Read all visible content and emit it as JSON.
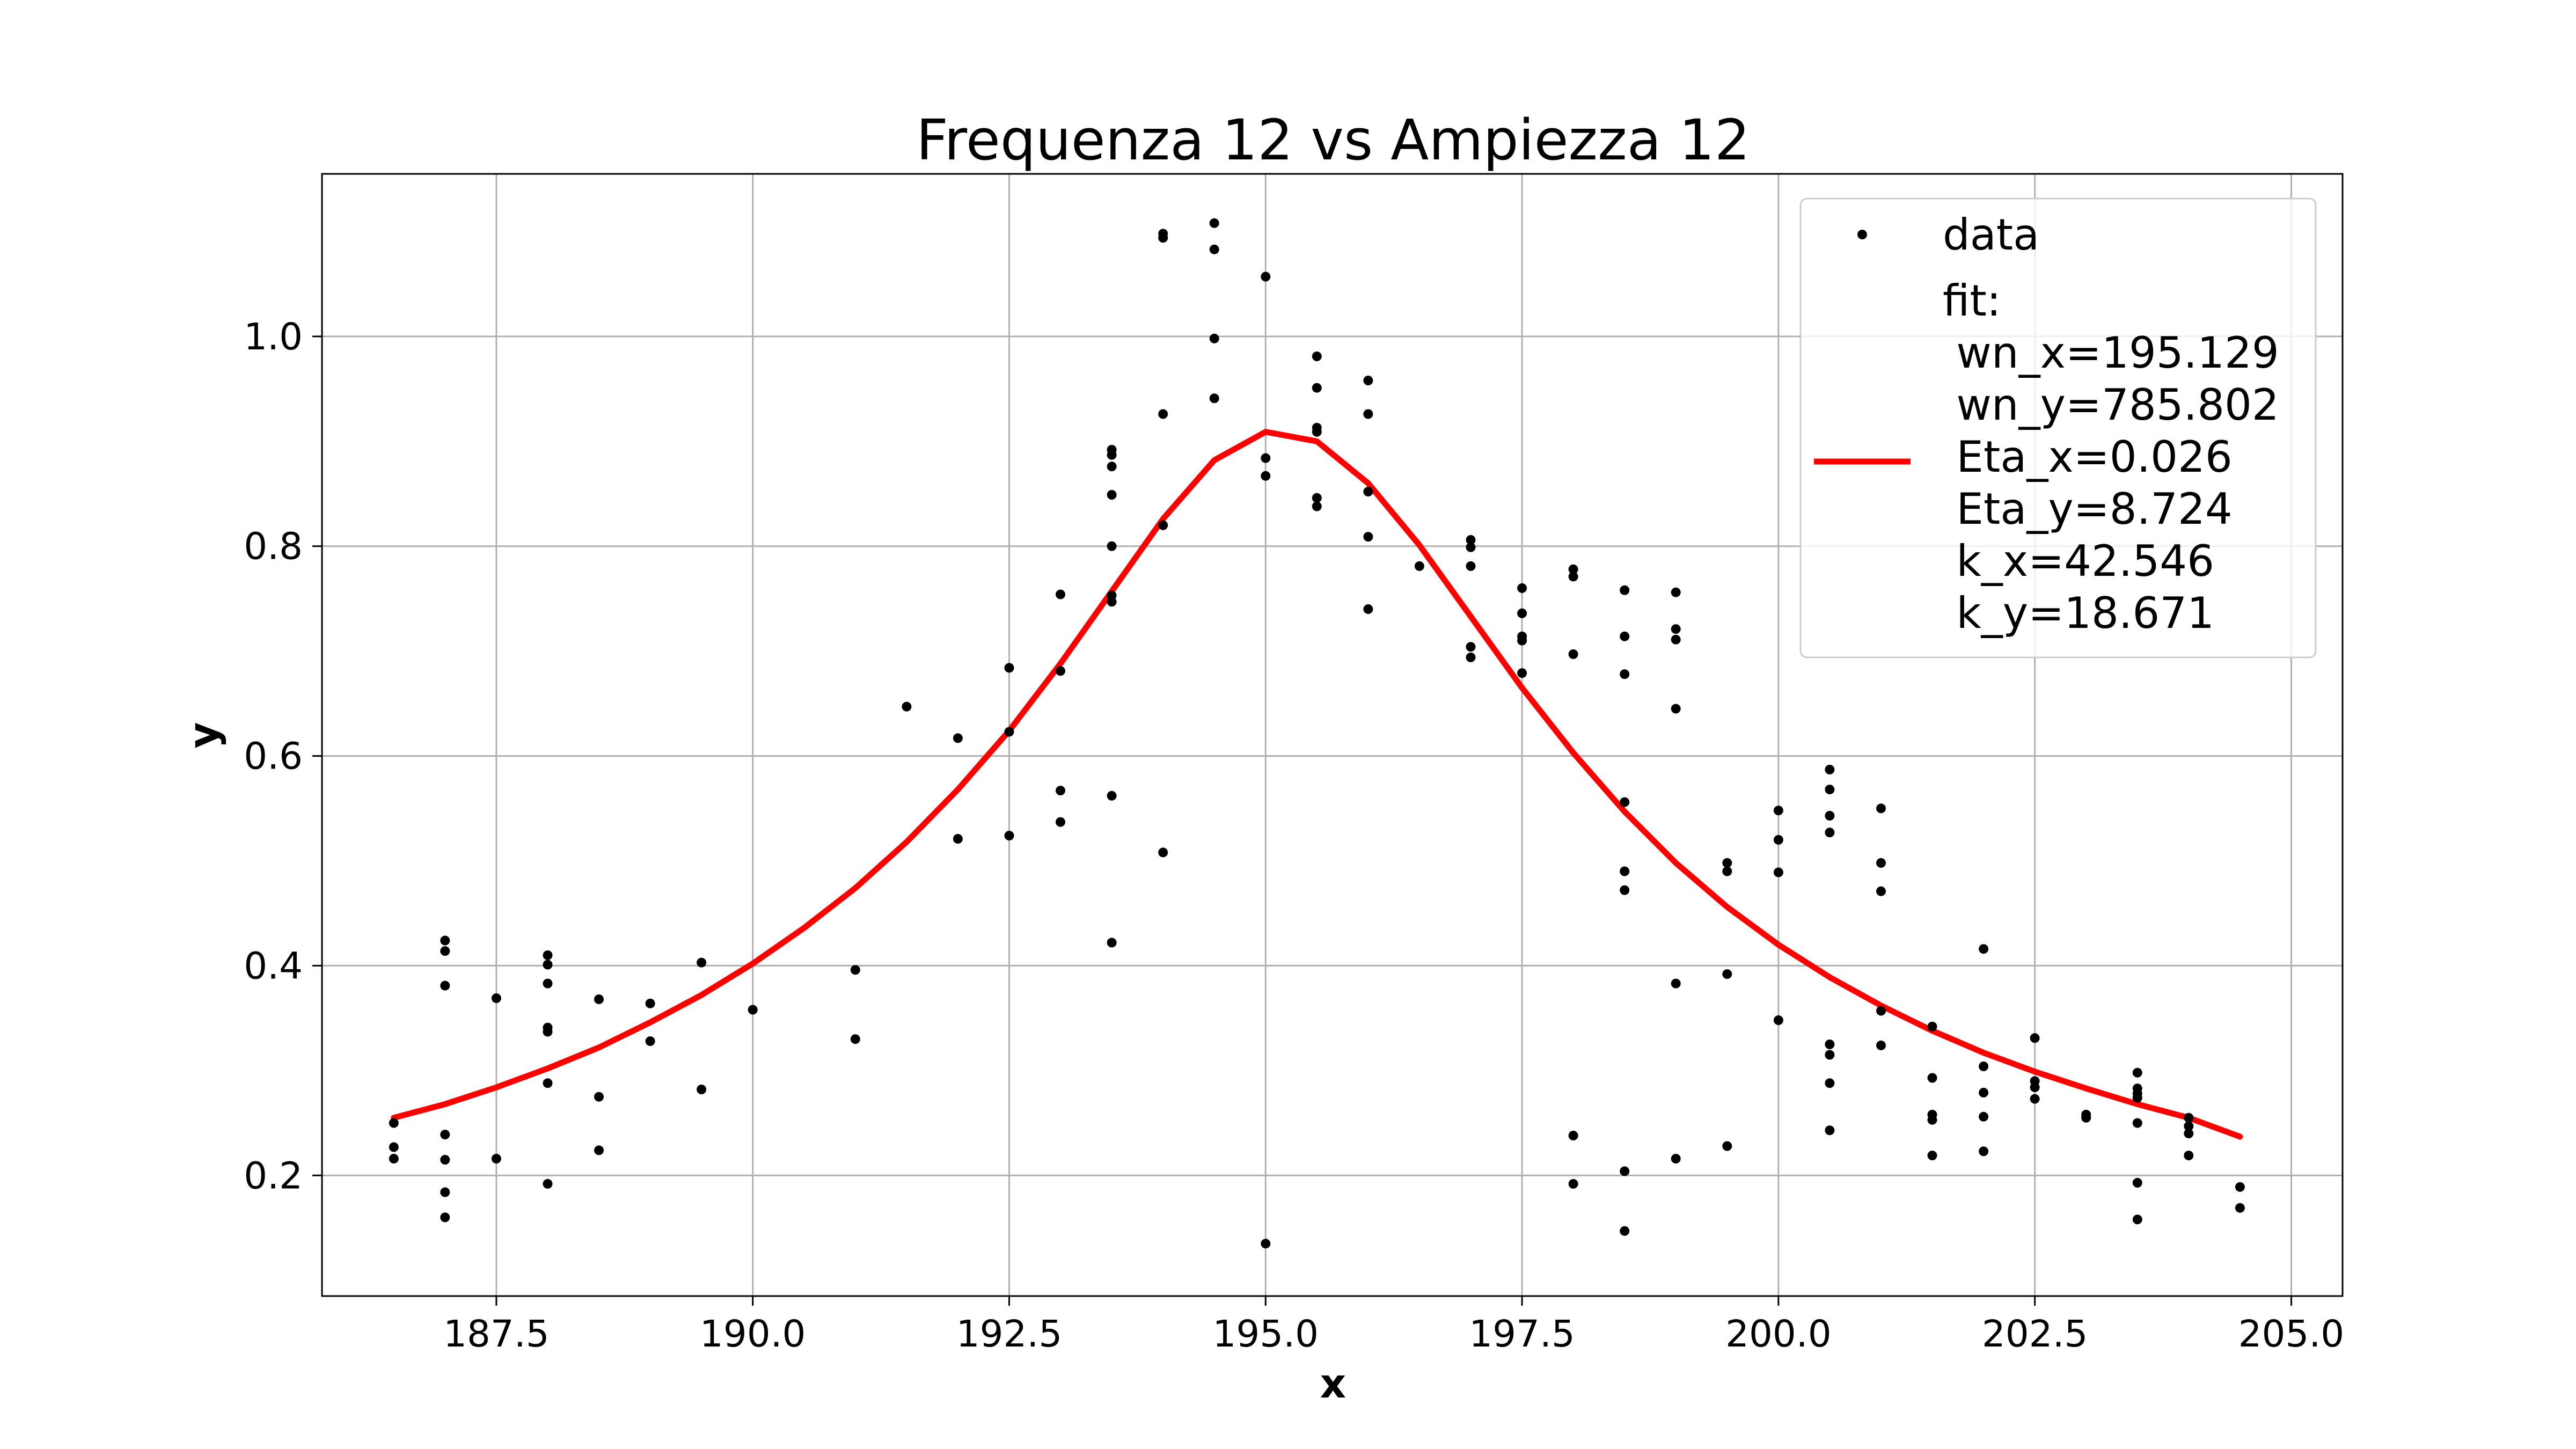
{
  "chart_data": {
    "type": "scatter",
    "title": "Frequenza 12 vs Ampiezza 12",
    "xlabel": "x",
    "ylabel": "y",
    "xlim": [
      185.8,
      205.5
    ],
    "ylim": [
      0.085,
      1.155
    ],
    "xticks": [
      187.5,
      190.0,
      192.5,
      195.0,
      197.5,
      200.0,
      202.5,
      205.0
    ],
    "xtick_labels": [
      "187.5",
      "190.0",
      "192.5",
      "195.0",
      "197.5",
      "200.0",
      "202.5",
      "205.0"
    ],
    "yticks": [
      0.2,
      0.4,
      0.6,
      0.8,
      1.0
    ],
    "ytick_labels": [
      "0.2",
      "0.4",
      "0.6",
      "0.8",
      "1.0"
    ],
    "grid": true,
    "legend_position": "top-right",
    "colors": {
      "data": "#000000",
      "fit": "#ff0000"
    },
    "series": [
      {
        "name": "data",
        "kind": "points",
        "points": [
          [
            186.5,
            0.25
          ],
          [
            186.5,
            0.227
          ],
          [
            186.5,
            0.216
          ],
          [
            187.0,
            0.424
          ],
          [
            187.0,
            0.414
          ],
          [
            187.0,
            0.381
          ],
          [
            187.0,
            0.239
          ],
          [
            187.0,
            0.215
          ],
          [
            187.0,
            0.184
          ],
          [
            187.0,
            0.16
          ],
          [
            187.5,
            0.369
          ],
          [
            187.5,
            0.216
          ],
          [
            188.0,
            0.41
          ],
          [
            188.0,
            0.401
          ],
          [
            188.0,
            0.383
          ],
          [
            188.0,
            0.341
          ],
          [
            188.0,
            0.337
          ],
          [
            188.0,
            0.288
          ],
          [
            188.0,
            0.192
          ],
          [
            188.5,
            0.368
          ],
          [
            188.5,
            0.275
          ],
          [
            188.5,
            0.224
          ],
          [
            189.0,
            0.364
          ],
          [
            189.0,
            0.328
          ],
          [
            189.5,
            0.403
          ],
          [
            189.5,
            0.282
          ],
          [
            190.0,
            0.358
          ],
          [
            191.0,
            0.396
          ],
          [
            191.0,
            0.33
          ],
          [
            191.5,
            0.647
          ],
          [
            192.0,
            0.617
          ],
          [
            192.0,
            0.521
          ],
          [
            192.5,
            0.684
          ],
          [
            192.5,
            0.623
          ],
          [
            192.5,
            0.524
          ],
          [
            193.0,
            0.754
          ],
          [
            193.0,
            0.681
          ],
          [
            193.0,
            0.567
          ],
          [
            193.0,
            0.537
          ],
          [
            193.5,
            0.892
          ],
          [
            193.5,
            0.887
          ],
          [
            193.5,
            0.876
          ],
          [
            193.5,
            0.849
          ],
          [
            193.5,
            0.8
          ],
          [
            193.5,
            0.753
          ],
          [
            193.5,
            0.747
          ],
          [
            193.5,
            0.562
          ],
          [
            193.5,
            0.422
          ],
          [
            194.0,
            1.098
          ],
          [
            194.0,
            1.094
          ],
          [
            194.0,
            0.926
          ],
          [
            194.0,
            0.82
          ],
          [
            194.0,
            0.508
          ],
          [
            194.5,
            1.108
          ],
          [
            194.5,
            1.083
          ],
          [
            194.5,
            0.998
          ],
          [
            194.5,
            0.941
          ],
          [
            195.0,
            1.057
          ],
          [
            195.0,
            0.884
          ],
          [
            195.0,
            0.867
          ],
          [
            195.0,
            0.135
          ],
          [
            195.5,
            0.981
          ],
          [
            195.5,
            0.951
          ],
          [
            195.5,
            0.913
          ],
          [
            195.5,
            0.909
          ],
          [
            195.5,
            0.846
          ],
          [
            195.5,
            0.838
          ],
          [
            196.0,
            0.958
          ],
          [
            196.0,
            0.926
          ],
          [
            196.0,
            0.852
          ],
          [
            196.0,
            0.809
          ],
          [
            196.0,
            0.74
          ],
          [
            196.5,
            0.781
          ],
          [
            197.0,
            0.806
          ],
          [
            197.0,
            0.799
          ],
          [
            197.0,
            0.781
          ],
          [
            197.0,
            0.704
          ],
          [
            197.0,
            0.694
          ],
          [
            197.5,
            0.76
          ],
          [
            197.5,
            0.736
          ],
          [
            197.5,
            0.714
          ],
          [
            197.5,
            0.71
          ],
          [
            197.5,
            0.679
          ],
          [
            198.0,
            0.778
          ],
          [
            198.0,
            0.771
          ],
          [
            198.0,
            0.697
          ],
          [
            198.0,
            0.238
          ],
          [
            198.0,
            0.192
          ],
          [
            198.5,
            0.758
          ],
          [
            198.5,
            0.714
          ],
          [
            198.5,
            0.678
          ],
          [
            198.5,
            0.556
          ],
          [
            198.5,
            0.49
          ],
          [
            198.5,
            0.472
          ],
          [
            198.5,
            0.204
          ],
          [
            198.5,
            0.147
          ],
          [
            199.0,
            0.756
          ],
          [
            199.0,
            0.721
          ],
          [
            199.0,
            0.711
          ],
          [
            199.0,
            0.645
          ],
          [
            199.0,
            0.383
          ],
          [
            199.0,
            0.216
          ],
          [
            199.5,
            0.498
          ],
          [
            199.5,
            0.49
          ],
          [
            199.5,
            0.392
          ],
          [
            199.5,
            0.228
          ],
          [
            200.0,
            0.548
          ],
          [
            200.0,
            0.52
          ],
          [
            200.0,
            0.489
          ],
          [
            200.0,
            0.348
          ],
          [
            200.5,
            0.587
          ],
          [
            200.5,
            0.568
          ],
          [
            200.5,
            0.543
          ],
          [
            200.5,
            0.527
          ],
          [
            200.5,
            0.325
          ],
          [
            200.5,
            0.315
          ],
          [
            200.5,
            0.288
          ],
          [
            200.5,
            0.243
          ],
          [
            201.0,
            0.55
          ],
          [
            201.0,
            0.498
          ],
          [
            201.0,
            0.471
          ],
          [
            201.0,
            0.357
          ],
          [
            201.0,
            0.324
          ],
          [
            201.5,
            0.342
          ],
          [
            201.5,
            0.293
          ],
          [
            201.5,
            0.258
          ],
          [
            201.5,
            0.253
          ],
          [
            201.5,
            0.219
          ],
          [
            202.0,
            0.416
          ],
          [
            202.0,
            0.304
          ],
          [
            202.0,
            0.279
          ],
          [
            202.0,
            0.256
          ],
          [
            202.0,
            0.223
          ],
          [
            202.5,
            0.331
          ],
          [
            202.5,
            0.29
          ],
          [
            202.5,
            0.284
          ],
          [
            202.5,
            0.273
          ],
          [
            203.0,
            0.258
          ],
          [
            203.0,
            0.255
          ],
          [
            203.5,
            0.298
          ],
          [
            203.5,
            0.283
          ],
          [
            203.5,
            0.278
          ],
          [
            203.5,
            0.274
          ],
          [
            203.5,
            0.25
          ],
          [
            203.5,
            0.193
          ],
          [
            203.5,
            0.158
          ],
          [
            204.0,
            0.255
          ],
          [
            204.0,
            0.247
          ],
          [
            204.0,
            0.24
          ],
          [
            204.0,
            0.219
          ],
          [
            204.5,
            0.189
          ],
          [
            204.5,
            0.169
          ]
        ]
      },
      {
        "name": "fit:\n wn_x=195.129\n wn_y=785.802\n Eta_x=0.026\n Eta_y=8.724\n k_x=42.546\n k_y=18.671",
        "kind": "line",
        "points": [
          [
            186.5,
            0.255
          ],
          [
            187.0,
            0.268
          ],
          [
            187.5,
            0.284
          ],
          [
            188.0,
            0.302
          ],
          [
            188.5,
            0.322
          ],
          [
            189.0,
            0.346
          ],
          [
            189.5,
            0.372
          ],
          [
            190.0,
            0.402
          ],
          [
            190.5,
            0.436
          ],
          [
            191.0,
            0.474
          ],
          [
            191.5,
            0.518
          ],
          [
            192.0,
            0.568
          ],
          [
            192.5,
            0.624
          ],
          [
            193.0,
            0.688
          ],
          [
            193.5,
            0.757
          ],
          [
            194.0,
            0.826
          ],
          [
            194.5,
            0.882
          ],
          [
            195.0,
            0.909
          ],
          [
            195.5,
            0.9
          ],
          [
            196.0,
            0.86
          ],
          [
            196.5,
            0.801
          ],
          [
            197.0,
            0.733
          ],
          [
            197.5,
            0.665
          ],
          [
            198.0,
            0.603
          ],
          [
            198.5,
            0.547
          ],
          [
            199.0,
            0.498
          ],
          [
            199.5,
            0.456
          ],
          [
            200.0,
            0.42
          ],
          [
            200.5,
            0.389
          ],
          [
            201.0,
            0.362
          ],
          [
            201.5,
            0.338
          ],
          [
            202.0,
            0.317
          ],
          [
            202.5,
            0.299
          ],
          [
            203.0,
            0.283
          ],
          [
            203.5,
            0.268
          ],
          [
            204.0,
            0.255
          ],
          [
            204.5,
            0.237
          ]
        ]
      }
    ]
  }
}
